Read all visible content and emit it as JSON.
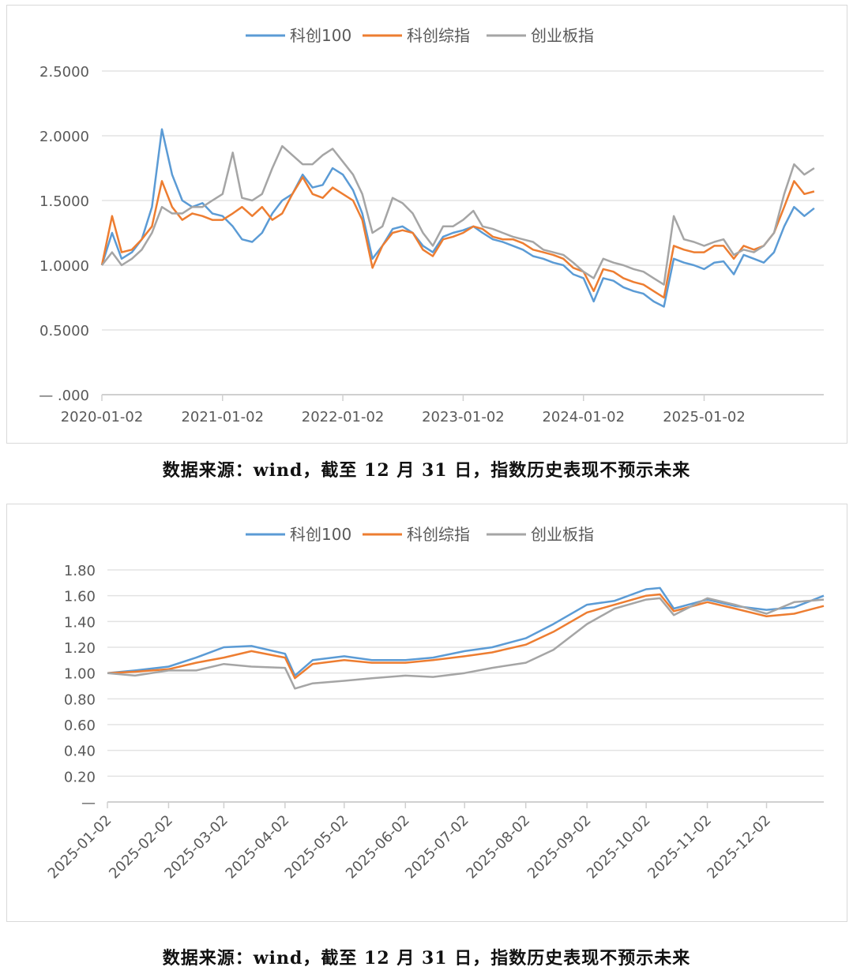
{
  "captions": [
    "数据来源：wind，截至 12 月 31 日，指数历史表现不预示未来",
    "数据来源：wind，截至 12 月 31 日，指数历史表现不预示未来"
  ],
  "chart_data": [
    {
      "type": "line",
      "legend": [
        "科创100",
        "科创综指",
        "创业板指"
      ],
      "legend_position": "top",
      "colors": [
        "#5b9bd5",
        "#ed7d31",
        "#a5a5a5"
      ],
      "grid": true,
      "xlim": [
        "2020-01-02",
        "2025-12-31"
      ],
      "ylim": [
        0,
        2.5
      ],
      "x_ticks": [
        "2020-01-02",
        "2021-01-02",
        "2022-01-02",
        "2023-01-02",
        "2024-01-02",
        "2025-01-02"
      ],
      "y_ticks": [
        0,
        0.5,
        1.0,
        1.5,
        2.0,
        2.5
      ],
      "y_tick_labels": [
        "—    .000",
        "0.5000",
        "1.0000",
        "1.5000",
        "2.0000",
        "2.5000"
      ],
      "x": [
        "2020-01",
        "2020-02",
        "2020-03",
        "2020-04",
        "2020-05",
        "2020-06",
        "2020-07",
        "2020-08",
        "2020-09",
        "2020-10",
        "2020-11",
        "2020-12",
        "2021-01",
        "2021-02",
        "2021-03",
        "2021-04",
        "2021-05",
        "2021-06",
        "2021-07",
        "2021-08",
        "2021-09",
        "2021-10",
        "2021-11",
        "2021-12",
        "2022-01",
        "2022-02",
        "2022-03",
        "2022-04",
        "2022-05",
        "2022-06",
        "2022-07",
        "2022-08",
        "2022-09",
        "2022-10",
        "2022-11",
        "2022-12",
        "2023-01",
        "2023-02",
        "2023-03",
        "2023-04",
        "2023-05",
        "2023-06",
        "2023-07",
        "2023-08",
        "2023-09",
        "2023-10",
        "2023-11",
        "2023-12",
        "2024-01",
        "2024-02",
        "2024-03",
        "2024-04",
        "2024-05",
        "2024-06",
        "2024-07",
        "2024-08",
        "2024-09",
        "2024-10",
        "2024-11",
        "2024-12",
        "2025-01",
        "2025-02",
        "2025-03",
        "2025-04",
        "2025-05",
        "2025-06",
        "2025-07",
        "2025-08",
        "2025-09",
        "2025-10",
        "2025-11",
        "2025-12"
      ],
      "series": [
        {
          "name": "科创100",
          "values": [
            1.0,
            1.25,
            1.05,
            1.1,
            1.2,
            1.45,
            2.05,
            1.7,
            1.5,
            1.45,
            1.48,
            1.4,
            1.38,
            1.3,
            1.2,
            1.18,
            1.25,
            1.4,
            1.5,
            1.55,
            1.7,
            1.6,
            1.62,
            1.75,
            1.7,
            1.58,
            1.4,
            1.05,
            1.15,
            1.28,
            1.3,
            1.25,
            1.15,
            1.1,
            1.22,
            1.25,
            1.27,
            1.3,
            1.25,
            1.2,
            1.18,
            1.15,
            1.12,
            1.07,
            1.05,
            1.02,
            1.0,
            0.93,
            0.9,
            0.72,
            0.9,
            0.88,
            0.83,
            0.8,
            0.78,
            0.72,
            0.68,
            1.05,
            1.02,
            1.0,
            0.97,
            1.02,
            1.03,
            0.93,
            1.08,
            1.05,
            1.02,
            1.1,
            1.3,
            1.45,
            1.38,
            1.44
          ]
        },
        {
          "name": "科创综指",
          "values": [
            1.0,
            1.38,
            1.1,
            1.12,
            1.2,
            1.3,
            1.65,
            1.45,
            1.35,
            1.4,
            1.38,
            1.35,
            1.35,
            1.4,
            1.45,
            1.38,
            1.45,
            1.35,
            1.4,
            1.55,
            1.68,
            1.55,
            1.52,
            1.6,
            1.55,
            1.5,
            1.35,
            0.98,
            1.15,
            1.25,
            1.27,
            1.25,
            1.12,
            1.07,
            1.2,
            1.22,
            1.25,
            1.3,
            1.28,
            1.22,
            1.2,
            1.2,
            1.17,
            1.12,
            1.1,
            1.08,
            1.05,
            0.98,
            0.95,
            0.8,
            0.97,
            0.95,
            0.9,
            0.87,
            0.85,
            0.8,
            0.75,
            1.15,
            1.12,
            1.1,
            1.1,
            1.15,
            1.15,
            1.05,
            1.15,
            1.12,
            1.15,
            1.25,
            1.45,
            1.65,
            1.55,
            1.57
          ]
        },
        {
          "name": "创业板指",
          "values": [
            1.0,
            1.1,
            1.0,
            1.05,
            1.12,
            1.25,
            1.45,
            1.4,
            1.4,
            1.45,
            1.45,
            1.5,
            1.55,
            1.87,
            1.52,
            1.5,
            1.55,
            1.75,
            1.92,
            1.85,
            1.78,
            1.78,
            1.85,
            1.9,
            1.8,
            1.7,
            1.55,
            1.25,
            1.3,
            1.52,
            1.48,
            1.4,
            1.25,
            1.15,
            1.3,
            1.3,
            1.35,
            1.42,
            1.3,
            1.28,
            1.25,
            1.22,
            1.2,
            1.18,
            1.12,
            1.1,
            1.08,
            1.02,
            0.95,
            0.9,
            1.05,
            1.02,
            1.0,
            0.97,
            0.95,
            0.9,
            0.85,
            1.38,
            1.2,
            1.18,
            1.15,
            1.18,
            1.2,
            1.08,
            1.12,
            1.1,
            1.15,
            1.25,
            1.55,
            1.78,
            1.7,
            1.75
          ]
        }
      ]
    },
    {
      "type": "line",
      "legend": [
        "科创100",
        "科创综指",
        "创业板指"
      ],
      "legend_position": "top",
      "colors": [
        "#5b9bd5",
        "#ed7d31",
        "#a5a5a5"
      ],
      "grid": true,
      "xlim": [
        "2025-01-02",
        "2025-12-31"
      ],
      "ylim": [
        0,
        1.8
      ],
      "x_ticks": [
        "2025-01-02",
        "2025-02-02",
        "2025-03-02",
        "2025-04-02",
        "2025-05-02",
        "2025-06-02",
        "2025-07-02",
        "2025-08-02",
        "2025-09-02",
        "2025-10-02",
        "2025-11-02",
        "2025-12-02"
      ],
      "y_ticks": [
        0,
        0.2,
        0.4,
        0.6,
        0.8,
        1.0,
        1.2,
        1.4,
        1.6,
        1.8
      ],
      "y_tick_labels": [
        "—",
        "0.20",
        "0.40",
        "0.60",
        "0.80",
        "1.00",
        "1.20",
        "1.40",
        "1.60",
        "1.80"
      ],
      "x": [
        "2025-01-02",
        "2025-01-16",
        "2025-02-02",
        "2025-02-16",
        "2025-03-02",
        "2025-03-16",
        "2025-04-02",
        "2025-04-07",
        "2025-04-16",
        "2025-05-02",
        "2025-05-16",
        "2025-06-02",
        "2025-06-16",
        "2025-07-02",
        "2025-07-16",
        "2025-08-02",
        "2025-08-16",
        "2025-09-02",
        "2025-09-16",
        "2025-10-02",
        "2025-10-09",
        "2025-10-16",
        "2025-11-02",
        "2025-11-16",
        "2025-12-02",
        "2025-12-16",
        "2025-12-31"
      ],
      "series": [
        {
          "name": "科创100",
          "values": [
            1.0,
            1.02,
            1.05,
            1.12,
            1.2,
            1.21,
            1.15,
            0.98,
            1.1,
            1.13,
            1.1,
            1.1,
            1.12,
            1.17,
            1.2,
            1.27,
            1.38,
            1.53,
            1.56,
            1.65,
            1.66,
            1.5,
            1.57,
            1.52,
            1.49,
            1.51,
            1.6
          ]
        },
        {
          "name": "科创综指",
          "values": [
            1.0,
            1.01,
            1.03,
            1.08,
            1.12,
            1.17,
            1.12,
            0.96,
            1.07,
            1.1,
            1.08,
            1.08,
            1.1,
            1.13,
            1.16,
            1.22,
            1.32,
            1.47,
            1.53,
            1.6,
            1.61,
            1.48,
            1.55,
            1.5,
            1.44,
            1.46,
            1.52
          ]
        },
        {
          "name": "创业板指",
          "values": [
            1.0,
            0.98,
            1.02,
            1.02,
            1.07,
            1.05,
            1.04,
            0.88,
            0.92,
            0.94,
            0.96,
            0.98,
            0.97,
            1.0,
            1.04,
            1.08,
            1.18,
            1.38,
            1.5,
            1.57,
            1.58,
            1.45,
            1.58,
            1.53,
            1.46,
            1.55,
            1.57
          ]
        }
      ]
    }
  ]
}
